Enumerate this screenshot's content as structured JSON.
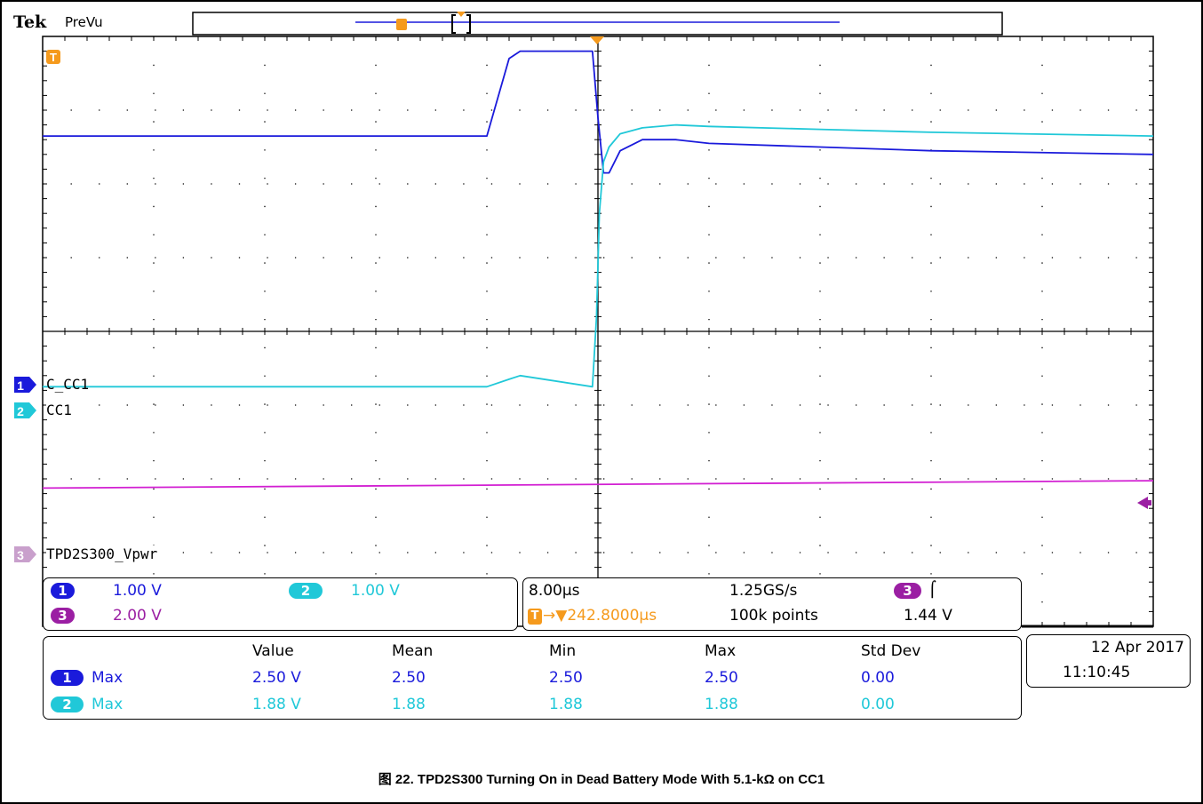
{
  "header": {
    "brand": "Tek",
    "mode": "PreVu"
  },
  "channels": {
    "ch1_marker": "1",
    "ch1_name": "C_CC1",
    "ch2_marker": "2",
    "ch2_name": "CC1",
    "ch3_marker": "3",
    "ch3_name": "TPD2S300_Vpwr"
  },
  "settings": {
    "ch1_num": "1",
    "ch1_scale": "1.00 V",
    "ch2_num": "2",
    "ch2_scale": "1.00 V",
    "ch3_num": "3",
    "ch3_scale": "2.00 V",
    "timebase": "8.00µs",
    "sample_rate": "1.25GS/s",
    "trigger_ch": "3",
    "trigger_slope": "⌠",
    "trigger_position": "→▼242.8000µs",
    "trigger_marker": "T",
    "record_length": "100k points",
    "trigger_level": "1.44 V"
  },
  "measurements": {
    "headers": [
      "Value",
      "Mean",
      "Min",
      "Max",
      "Std Dev"
    ],
    "rows": [
      {
        "ch": "1",
        "type": "Max",
        "value": "2.50 V",
        "mean": "2.50",
        "min": "2.50",
        "max": "2.50",
        "std": "0.00"
      },
      {
        "ch": "2",
        "type": "Max",
        "value": "1.88 V",
        "mean": "1.88",
        "min": "1.88",
        "max": "1.88",
        "std": "0.00"
      }
    ]
  },
  "datetime": {
    "date": "12 Apr  2017",
    "time": "11:10:45"
  },
  "caption": "图 22. TPD2S300 Turning On in Dead Battery Mode With 5.1-kΩ on CC1",
  "colors": {
    "ch1": "#1a1adb",
    "ch2": "#20c8d8",
    "ch3": "#d21fd2",
    "trigger": "#f59a1d"
  },
  "chart_data": {
    "type": "line",
    "title": "",
    "xlabel": "",
    "ylabel": "",
    "x_units": "µs",
    "xlim": [
      -40,
      40
    ],
    "x_per_div": 8,
    "divisions": [
      10,
      8
    ],
    "grid": true,
    "series": [
      {
        "name": "C_CC1",
        "volts_per_div": 1,
        "zero_div": -0.6,
        "x": [
          -40,
          -8,
          -6.4,
          -5.6,
          -0.4,
          0,
          0.4,
          0.8,
          1.6,
          3.2,
          5.6,
          8,
          16,
          24,
          40
        ],
        "y": [
          3.25,
          3.25,
          4.3,
          4.4,
          4.4,
          3.5,
          2.75,
          2.75,
          3.05,
          3.2,
          3.2,
          3.15,
          3.1,
          3.05,
          3.0
        ]
      },
      {
        "name": "CC1",
        "volts_per_div": 1,
        "zero_div": -1.1,
        "x": [
          -40,
          -8,
          -6.4,
          -5.6,
          -0.4,
          -0.1,
          0.1,
          0.4,
          0.8,
          1.6,
          3.2,
          5.6,
          8,
          16,
          24,
          40
        ],
        "y": [
          0.35,
          0.35,
          0.45,
          0.5,
          0.35,
          1.3,
          2.7,
          3.4,
          3.6,
          3.78,
          3.86,
          3.9,
          3.88,
          3.84,
          3.8,
          3.75
        ]
      },
      {
        "name": "TPD2S300_Vpwr",
        "volts_per_div": 2,
        "zero_div": -2.9,
        "x": [
          -40,
          40
        ],
        "y": [
          1.55,
          1.75
        ]
      }
    ]
  }
}
